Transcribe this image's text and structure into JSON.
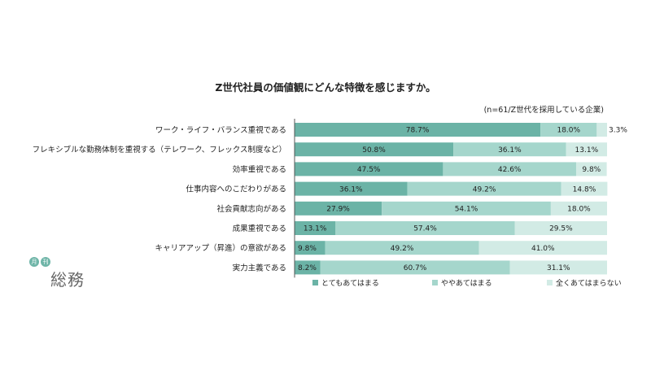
{
  "chart_data": {
    "type": "bar",
    "orientation": "horizontal",
    "stacked": true,
    "title": "Z世代社員の価値観にどんな特徴を感じますか。",
    "subtitle": "(n=61/Z世代を採用している企業)",
    "categories": [
      "ワーク・ライフ・バランス重視である",
      "フレキシブルな勤務体制を重視する（テレワーク、フレックス制度など）",
      "効率重視である",
      "仕事内容へのこだわりがある",
      "社会貢献志向がある",
      "成果重視である",
      "キャリアアップ（昇進）の意欲がある",
      "実力主義である"
    ],
    "series": [
      {
        "name": "とてもあてはまる",
        "color": "#6bb3a6",
        "values": [
          78.7,
          50.8,
          47.5,
          36.1,
          27.9,
          13.1,
          9.8,
          8.2
        ],
        "labels": [
          "78.7%",
          "50.8%",
          "47.5%",
          "36.1%",
          "27.9%",
          "13.1%",
          "9.8%",
          "8.2%"
        ]
      },
      {
        "name": "ややあてはまる",
        "color": "#a5d6cc",
        "values": [
          18.0,
          36.1,
          42.6,
          49.2,
          54.1,
          57.4,
          49.2,
          60.7
        ],
        "labels": [
          "18.0%",
          "36.1%",
          "42.6%",
          "49.2%",
          "54.1%",
          "57.4%",
          "49.2%",
          "60.7%"
        ]
      },
      {
        "name": "全くあてはまらない",
        "color": "#d2ebe5",
        "values": [
          3.3,
          13.1,
          9.8,
          14.8,
          18.0,
          29.5,
          41.0,
          31.1
        ],
        "labels": [
          "3.3%",
          "13.1%",
          "9.8%",
          "14.8%",
          "18.0%",
          "29.5%",
          "41.0%",
          "31.1%"
        ]
      }
    ],
    "xlim": [
      0,
      100
    ],
    "grid": false,
    "legend_position": "bottom"
  },
  "logo": {
    "badge_1": "月",
    "badge_2": "刊",
    "name": "総務"
  }
}
